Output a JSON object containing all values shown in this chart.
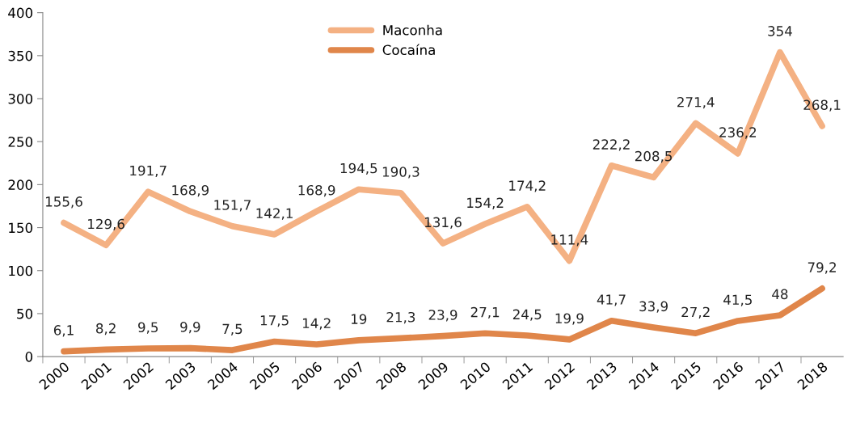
{
  "chart_data": {
    "type": "line",
    "categories": [
      "2000",
      "2001",
      "2002",
      "2003",
      "2004",
      "2005",
      "2006",
      "2007",
      "2008",
      "2009",
      "2010",
      "2011",
      "2012",
      "2013",
      "2014",
      "2015",
      "2016",
      "2017",
      "2018"
    ],
    "series": [
      {
        "name": "Maconha",
        "color": "#f4b183",
        "values": [
          155.6,
          129.6,
          191.7,
          168.9,
          151.7,
          142.1,
          168.9,
          194.5,
          190.3,
          131.6,
          154.2,
          174.2,
          111.4,
          222.2,
          208.5,
          271.4,
          236.2,
          354,
          268.1
        ],
        "value_labels": [
          "155,6",
          "129,6",
          "191,7",
          "168,9",
          "151,7",
          "142,1",
          "168,9",
          "194,5",
          "190,3",
          "131,6",
          "154,2",
          "174,2",
          "111,4",
          "222,2",
          "208,5",
          "271,4",
          "236,2",
          "354",
          "268,1"
        ]
      },
      {
        "name": "Cocaína",
        "color": "#e0864a",
        "values": [
          6.1,
          8.2,
          9.5,
          9.9,
          7.5,
          17.5,
          14.2,
          19,
          21.3,
          23.9,
          27.1,
          24.5,
          19.9,
          41.7,
          33.9,
          27.2,
          41.5,
          48,
          79.2
        ],
        "value_labels": [
          "6,1",
          "8,2",
          "9,5",
          "9,9",
          "7,5",
          "17,5",
          "14,2",
          "19",
          "21,3",
          "23,9",
          "27,1",
          "24,5",
          "19,9",
          "41,7",
          "33,9",
          "27,2",
          "41,5",
          "48",
          "79,2"
        ]
      }
    ],
    "ylim": [
      0,
      400
    ],
    "yticks": [
      0,
      50,
      100,
      150,
      200,
      250,
      300,
      350,
      400
    ],
    "grid": false,
    "legend": "top",
    "marker": "none",
    "line_style": "solid"
  }
}
